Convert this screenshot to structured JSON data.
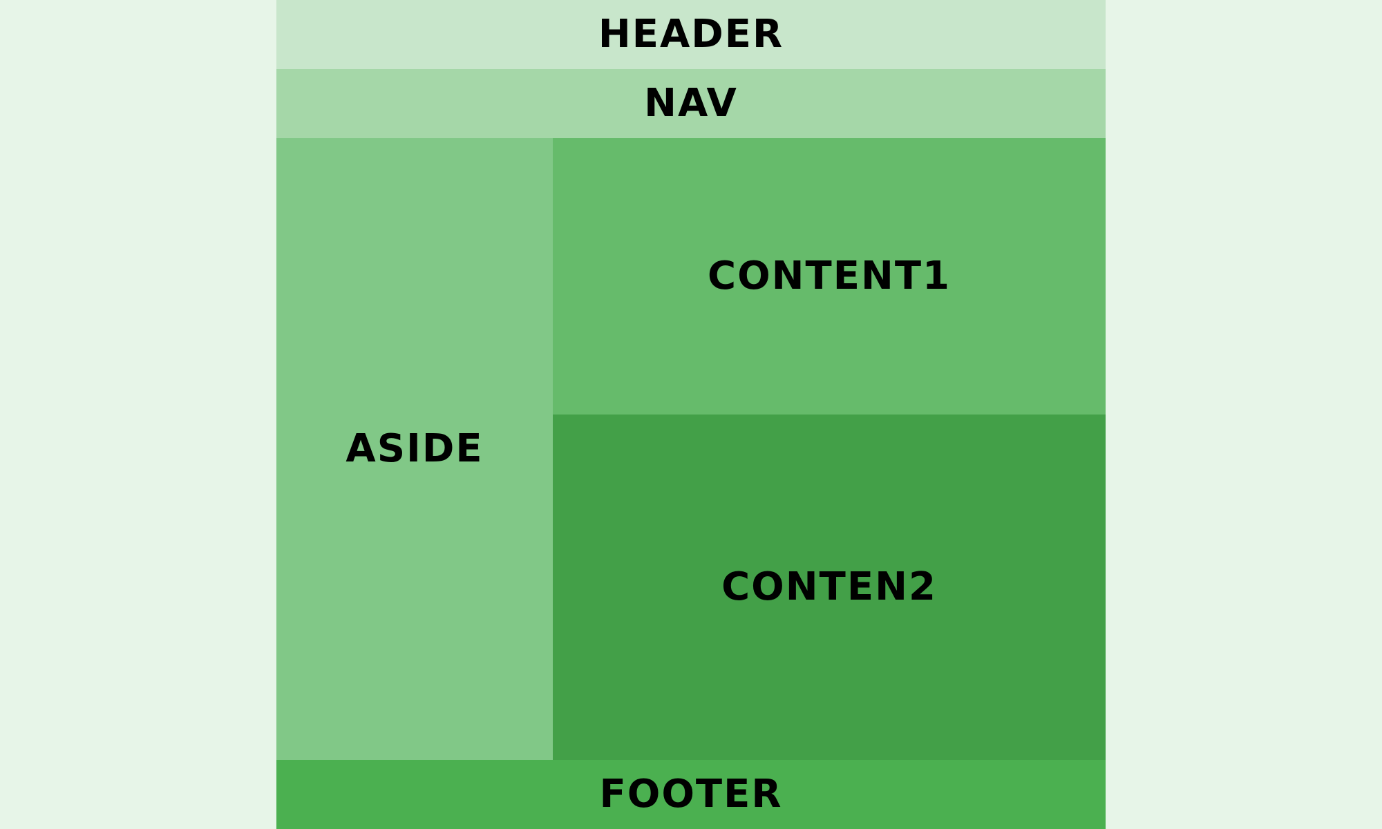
{
  "page": {
    "background": "#e7f5e8"
  },
  "layout": {
    "header": {
      "label": "HEADER",
      "color": "#c8e6cb"
    },
    "nav": {
      "label": "NAV",
      "color": "#a5d7a8"
    },
    "aside": {
      "label": "ASIDE",
      "color": "#81c887"
    },
    "content1": {
      "label": "CONTENT1",
      "color": "#66bb6b"
    },
    "content2": {
      "label": "CONTEN2",
      "color": "#43a048"
    },
    "footer": {
      "label": "FOOTER",
      "color": "#4bb050"
    }
  }
}
